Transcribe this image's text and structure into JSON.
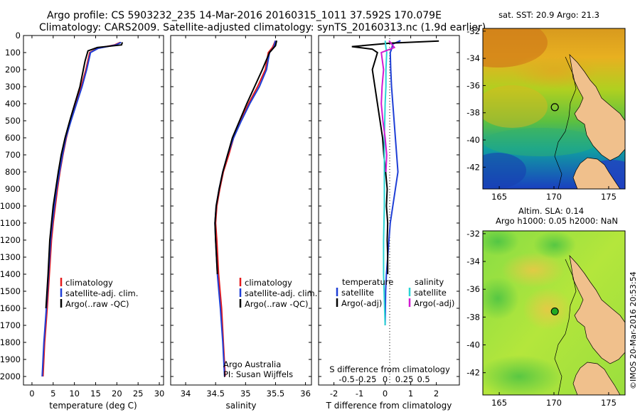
{
  "header": {
    "line1": "Argo profile: CS 5903232_235 14-Mar-2016 20160315_1011 37.592S 170.079E",
    "line2": "Climatology: CARS2009. Satellite-adjusted climatology: synTS_20160313.nc (1.9d earlier)"
  },
  "credit": {
    "agency": "Argo Australia",
    "pi": "PI: Susan Wijffels",
    "stamp": "©IMOS 20-Mar-2016 20:53:54"
  },
  "chart_data": [
    {
      "type": "line",
      "panel": "temperature",
      "xlabel": "temperature (deg C)",
      "xlim": [
        -2,
        31
      ],
      "xticks": [
        "0",
        "5",
        "10",
        "15",
        "20",
        "25",
        "30"
      ],
      "ylim": [
        2050,
        0
      ],
      "yticks": [
        "0",
        "100",
        "200",
        "300",
        "400",
        "500",
        "600",
        "700",
        "800",
        "900",
        "1000",
        "1100",
        "1200",
        "1300",
        "1400",
        "1500",
        "1600",
        "1700",
        "1800",
        "1900",
        "2000"
      ],
      "legend": [
        "climatology",
        "satellite-adj. clim.",
        "Argo(..raw -QC)"
      ],
      "series": [
        {
          "name": "climatology",
          "color": "#e41a1c",
          "points": [
            [
              20.8,
              40
            ],
            [
              19.5,
              55
            ],
            [
              15.5,
              75
            ],
            [
              13.6,
              100
            ],
            [
              12.7,
              200
            ],
            [
              11.6,
              300
            ],
            [
              10.4,
              400
            ],
            [
              9.1,
              500
            ],
            [
              8.1,
              600
            ],
            [
              7.3,
              700
            ],
            [
              6.6,
              800
            ],
            [
              6.0,
              900
            ],
            [
              5.5,
              1000
            ],
            [
              5.0,
              1100
            ],
            [
              4.6,
              1200
            ],
            [
              4.1,
              1400
            ],
            [
              3.6,
              1600
            ],
            [
              3.0,
              1800
            ],
            [
              2.6,
              2000
            ]
          ]
        },
        {
          "name": "satellite-adj. clim.",
          "color": "#1f3fd6",
          "points": [
            [
              21.0,
              40
            ],
            [
              19.8,
              55
            ],
            [
              15.6,
              75
            ],
            [
              13.8,
              100
            ],
            [
              12.9,
              200
            ],
            [
              11.8,
              300
            ],
            [
              10.5,
              400
            ],
            [
              9.2,
              500
            ],
            [
              8.0,
              600
            ],
            [
              7.2,
              700
            ],
            [
              6.5,
              800
            ],
            [
              5.8,
              900
            ],
            [
              5.3,
              1000
            ],
            [
              4.8,
              1100
            ],
            [
              4.4,
              1200
            ],
            [
              3.9,
              1400
            ],
            [
              3.4,
              1600
            ],
            [
              2.8,
              1800
            ],
            [
              2.4,
              2000
            ]
          ]
        },
        {
          "name": "Argo(..raw -QC)",
          "color": "#000000",
          "points": [
            [
              21.3,
              40
            ],
            [
              21.1,
              55
            ],
            [
              15.4,
              70
            ],
            [
              13.2,
              90
            ],
            [
              12.5,
              150
            ],
            [
              12.1,
              200
            ],
            [
              11.3,
              300
            ],
            [
              10.1,
              400
            ],
            [
              8.9,
              500
            ],
            [
              7.8,
              600
            ],
            [
              6.9,
              700
            ],
            [
              6.2,
              800
            ],
            [
              5.6,
              900
            ],
            [
              5.0,
              1000
            ],
            [
              4.6,
              1100
            ],
            [
              4.2,
              1200
            ],
            [
              3.8,
              1400
            ],
            [
              3.3,
              1600
            ]
          ]
        }
      ]
    },
    {
      "type": "line",
      "panel": "salinity",
      "xlabel": "salinity",
      "xlim": [
        33.75,
        36.1
      ],
      "xticks": [
        "34",
        "34.5",
        "35",
        "35.5",
        "36"
      ],
      "ylim": [
        2050,
        0
      ],
      "legend": [
        "climatology",
        "satellite-adj. clim.",
        "Argo(..raw -QC)"
      ],
      "series": [
        {
          "name": "climatology",
          "color": "#e41a1c",
          "points": [
            [
              35.5,
              30
            ],
            [
              35.45,
              70
            ],
            [
              35.38,
              100
            ],
            [
              35.33,
              200
            ],
            [
              35.2,
              300
            ],
            [
              35.05,
              400
            ],
            [
              34.92,
              500
            ],
            [
              34.8,
              600
            ],
            [
              34.72,
              700
            ],
            [
              34.63,
              800
            ],
            [
              34.57,
              900
            ],
            [
              34.52,
              1000
            ],
            [
              34.5,
              1100
            ],
            [
              34.52,
              1200
            ],
            [
              34.55,
              1400
            ],
            [
              34.6,
              1600
            ],
            [
              34.63,
              1800
            ],
            [
              34.66,
              2000
            ]
          ]
        },
        {
          "name": "satellite-adj. clim.",
          "color": "#1f3fd6",
          "points": [
            [
              35.5,
              30
            ],
            [
              35.47,
              70
            ],
            [
              35.4,
              100
            ],
            [
              35.35,
              200
            ],
            [
              35.23,
              300
            ],
            [
              35.07,
              400
            ],
            [
              34.93,
              500
            ],
            [
              34.8,
              600
            ],
            [
              34.7,
              700
            ],
            [
              34.62,
              800
            ],
            [
              34.56,
              900
            ],
            [
              34.51,
              1000
            ],
            [
              34.49,
              1100
            ],
            [
              34.5,
              1200
            ],
            [
              34.53,
              1400
            ],
            [
              34.58,
              1600
            ],
            [
              34.62,
              1800
            ],
            [
              34.65,
              2000
            ]
          ]
        },
        {
          "name": "Argo(..raw -QC)",
          "color": "#000000",
          "points": [
            [
              35.52,
              30
            ],
            [
              35.5,
              60
            ],
            [
              35.4,
              100
            ],
            [
              35.28,
              200
            ],
            [
              35.15,
              300
            ],
            [
              35.02,
              400
            ],
            [
              34.9,
              500
            ],
            [
              34.78,
              600
            ],
            [
              34.7,
              700
            ],
            [
              34.62,
              800
            ],
            [
              34.56,
              900
            ],
            [
              34.51,
              1000
            ],
            [
              34.49,
              1100
            ],
            [
              34.5,
              1200
            ],
            [
              34.53,
              1400
            ]
          ]
        }
      ]
    },
    {
      "type": "line",
      "panel": "difference",
      "xlabel": "T difference from climatology",
      "xlabel_top": "S difference from climatology",
      "xlim": [
        -2.6,
        2.9
      ],
      "xticks": [
        "-2",
        "-1",
        "0",
        "1",
        "2"
      ],
      "xticks_top": [
        "-0.5",
        "-0.25",
        "0",
        "0.25",
        "0.5"
      ],
      "ylim": [
        2050,
        0
      ],
      "legend": {
        "temperature_title": "temperature",
        "salinity_title": "salinity",
        "temperature": [
          "satellite",
          "Argo(-adj)"
        ],
        "salinity": [
          "satellite",
          "Argo(-adj)"
        ]
      },
      "series": [
        {
          "name": "T satellite",
          "color": "#1f3fd6",
          "points": [
            [
              0.6,
              30
            ],
            [
              0.3,
              50
            ],
            [
              0.25,
              80
            ],
            [
              0.2,
              100
            ],
            [
              0.22,
              200
            ],
            [
              0.25,
              300
            ],
            [
              0.3,
              400
            ],
            [
              0.35,
              500
            ],
            [
              0.4,
              600
            ],
            [
              0.45,
              700
            ],
            [
              0.5,
              800
            ],
            [
              0.4,
              900
            ],
            [
              0.3,
              1000
            ],
            [
              0.2,
              1100
            ],
            [
              0.15,
              1200
            ],
            [
              0.1,
              1300
            ],
            [
              0.05,
              1400
            ],
            [
              0.02,
              1500
            ],
            [
              0,
              1700
            ]
          ]
        },
        {
          "name": "T Argo(-adj)",
          "color": "#000000",
          "points": [
            [
              2.1,
              32
            ],
            [
              0.2,
              45
            ],
            [
              -1.3,
              65
            ],
            [
              -0.5,
              80
            ],
            [
              -0.3,
              100
            ],
            [
              -0.5,
              200
            ],
            [
              -0.4,
              300
            ],
            [
              -0.3,
              400
            ],
            [
              -0.2,
              500
            ],
            [
              -0.1,
              600
            ],
            [
              -0.05,
              700
            ],
            [
              0.02,
              800
            ],
            [
              0.08,
              900
            ],
            [
              0.05,
              1000
            ],
            [
              0.1,
              1100
            ],
            [
              0.08,
              1200
            ],
            [
              0.1,
              1300
            ],
            [
              0.1,
              1400
            ]
          ]
        },
        {
          "name": "S satellite",
          "color": "#2ad4d4",
          "points": [
            [
              0,
              30
            ],
            [
              0.01,
              70
            ],
            [
              0.02,
              100
            ],
            [
              0.01,
              200
            ],
            [
              0.01,
              300
            ],
            [
              0,
              400
            ],
            [
              -0.01,
              600
            ],
            [
              -0.01,
              800
            ],
            [
              -0.01,
              1000
            ],
            [
              -0.02,
              1200
            ],
            [
              -0.02,
              1400
            ],
            [
              0,
              1700
            ]
          ]
        },
        {
          "name": "S Argo(-adj)",
          "color": "#d11ad1",
          "points": [
            [
              0.05,
              30
            ],
            [
              0.12,
              70
            ],
            [
              -0.05,
              100
            ],
            [
              -0.02,
              200
            ],
            [
              -0.04,
              300
            ],
            [
              -0.05,
              400
            ],
            [
              -0.03,
              500
            ],
            [
              0,
              600
            ],
            [
              0.02,
              700
            ],
            [
              0.01,
              800
            ]
          ]
        }
      ]
    },
    {
      "type": "heatmap",
      "panel": "sst-map",
      "title": "sat. SST: 20.9 Argo: 21.3",
      "xlim": [
        163.5,
        176.5
      ],
      "ylim": [
        -43.6,
        -31.8
      ],
      "xticks": [
        "165",
        "170",
        "175"
      ],
      "yticks": [
        "-32",
        "-34",
        "-36",
        "-38",
        "-40",
        "-42"
      ],
      "marker": {
        "lon": 170.079,
        "lat": -37.592
      }
    },
    {
      "type": "heatmap",
      "panel": "sla-map",
      "title": "Altim. SLA: 0.14",
      "subtitle": "Argo h1000: 0.05 h2000: NaN",
      "xlim": [
        163.5,
        176.5
      ],
      "ylim": [
        -43.6,
        -31.8
      ],
      "xticks": [
        "165",
        "170",
        "175"
      ],
      "yticks": [
        "-32",
        "-34",
        "-36",
        "-38",
        "-40",
        "-42"
      ],
      "marker": {
        "lon": 170.079,
        "lat": -37.592
      }
    }
  ]
}
